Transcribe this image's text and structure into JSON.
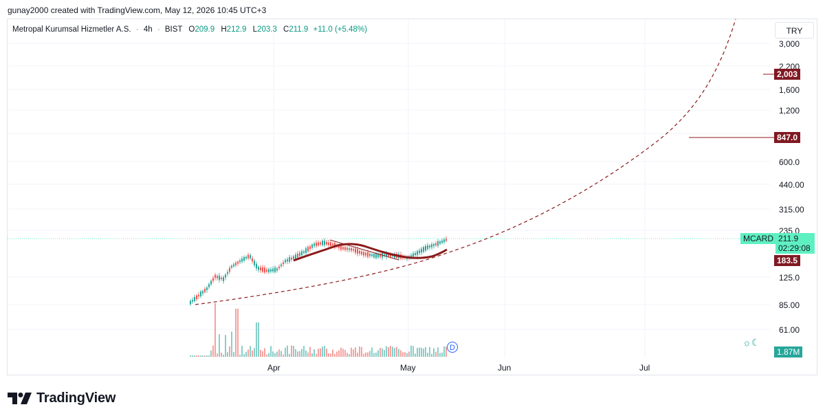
{
  "attribution": "gunay2000 created with TradingView.com, May 12, 2026 10:45 UTC+3",
  "legend": {
    "symbol_name": "Metropal Kurumsal Hizmetler A.S.",
    "interval": "4h",
    "exchange": "BIST",
    "open_label": "O",
    "open_value": "209.9",
    "high_label": "H",
    "high_value": "212.9",
    "low_label": "L",
    "low_value": "203.3",
    "close_label": "C",
    "close_value": "211.9",
    "change": "+11.0 (+5.48%)"
  },
  "currency": "TRY",
  "price_axis": {
    "scale": "log",
    "ticks": [
      "3,000",
      "2,200",
      "1,600",
      "1,200",
      "600.0",
      "440.00",
      "315.00",
      "235.0",
      "125.0",
      "85.00",
      "61.00"
    ]
  },
  "price_labels": {
    "target_2003": "2,003",
    "target_847": "847.0",
    "ticker": "MCARD",
    "last_price": "211.9",
    "countdown": "02:29:08",
    "ma_value": "183.5",
    "volume": "1.87M"
  },
  "time_axis": {
    "ticks": [
      "Apr",
      "May",
      "Jun",
      "Jul"
    ]
  },
  "dividend_marker": "D",
  "session_icon": "☼☾",
  "brand": "TradingView",
  "colors": {
    "up": "#26a69a",
    "down": "#ef5350",
    "moving_average": "#8b1a1a",
    "projection_curve": "#8b1a1a",
    "target_badge": "#801922",
    "last_price_badge": "#5ff0c1",
    "volume_badge": "#26a69a"
  },
  "icons": [
    "tradingview-logo-icon",
    "dividend-marker-icon",
    "session-sun-moon-icon"
  ]
}
